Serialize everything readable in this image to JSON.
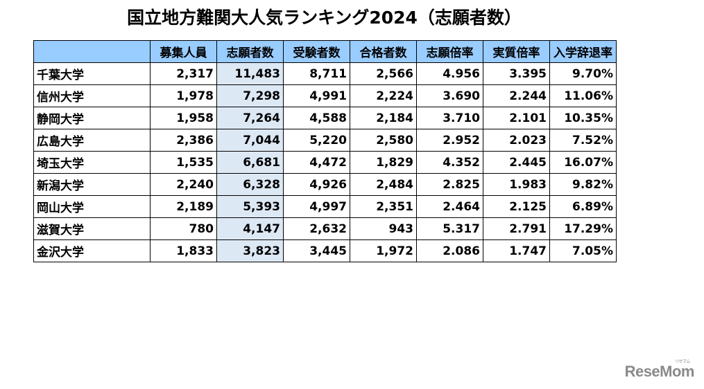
{
  "title": "国立地方難関大人気ランキング2024（志願者数）",
  "table": {
    "headers": [
      "",
      "募集人員",
      "志願者数",
      "受験者数",
      "合格者数",
      "志願倍率",
      "実質倍率",
      "入学辞退率"
    ],
    "highlight_column": 2,
    "colors": {
      "header_bg": "#99ccff",
      "highlight_bg": "#dde8f5",
      "border": "#000000"
    },
    "rows": [
      [
        "千葉大学",
        "2,317",
        "11,483",
        "8,711",
        "2,566",
        "4.956",
        "3.395",
        "9.70%"
      ],
      [
        "信州大学",
        "1,978",
        "7,298",
        "4,991",
        "2,224",
        "3.690",
        "2.244",
        "11.06%"
      ],
      [
        "静岡大学",
        "1,958",
        "7,264",
        "4,588",
        "2,184",
        "3.710",
        "2.101",
        "10.35%"
      ],
      [
        "広島大学",
        "2,386",
        "7,044",
        "5,220",
        "2,580",
        "2.952",
        "2.023",
        "7.52%"
      ],
      [
        "埼玉大学",
        "1,535",
        "6,681",
        "4,472",
        "1,829",
        "4.352",
        "2.445",
        "16.07%"
      ],
      [
        "新潟大学",
        "2,240",
        "6,328",
        "4,926",
        "2,484",
        "2.825",
        "1.983",
        "9.82%"
      ],
      [
        "岡山大学",
        "2,189",
        "5,393",
        "4,997",
        "2,351",
        "2.464",
        "2.125",
        "6.89%"
      ],
      [
        "滋賀大学",
        "780",
        "4,147",
        "2,632",
        "943",
        "5.317",
        "2.791",
        "17.29%"
      ],
      [
        "金沢大学",
        "1,833",
        "3,823",
        "3,445",
        "1,972",
        "2.086",
        "1.747",
        "7.05%"
      ]
    ]
  },
  "logo": {
    "text": "ReseMom",
    "ruby": "リセマム"
  }
}
